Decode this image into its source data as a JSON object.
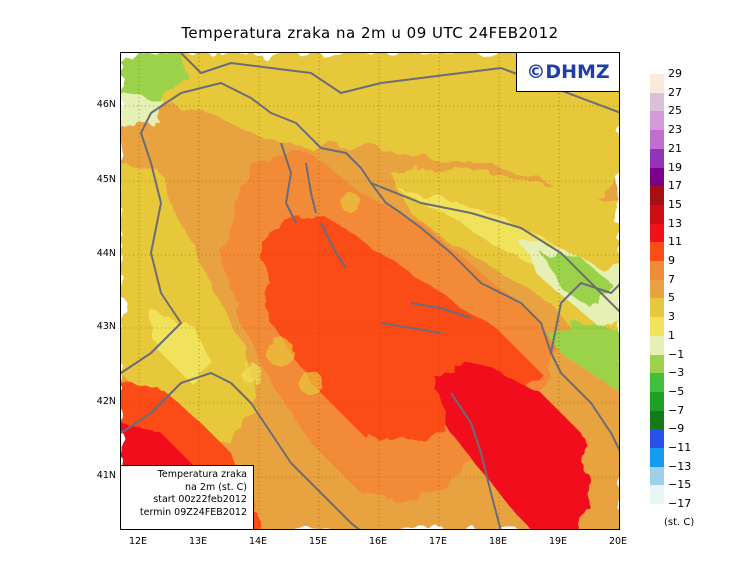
{
  "title": "Temperatura zraka na 2m u 09 UTC 24FEB2012",
  "brand": "©DHMZ",
  "info": {
    "line1": "Temperatura zraka",
    "line2": "na 2m (st. C)",
    "line3": "start 00z22feb2012",
    "line4": "termin 09Z24FEB2012"
  },
  "lat_labels": [
    "46N",
    "45N",
    "44N",
    "43N",
    "42N",
    "41N"
  ],
  "lon_labels": [
    "12E",
    "13E",
    "14E",
    "15E",
    "16E",
    "17E",
    "18E",
    "19E",
    "20E"
  ],
  "legend": {
    "unit": "(st. C)",
    "labels": [
      "29",
      "27",
      "25",
      "23",
      "21",
      "19",
      "17",
      "15",
      "13",
      "11",
      "9",
      "7",
      "5",
      "3",
      "1",
      "−1",
      "−3",
      "−5",
      "−7",
      "−9",
      "−11",
      "−13",
      "−15",
      "−17"
    ],
    "colors": [
      "#fbeadc",
      "#dcc0d8",
      "#d59ad8",
      "#c06fd0",
      "#9333b5",
      "#7a0088",
      "#a50f15",
      "#cf0d12",
      "#f2101a",
      "#fb4b18",
      "#f28a38",
      "#e9a23f",
      "#e8c83a",
      "#f0e25a",
      "#e6efb4",
      "#9bd24a",
      "#3fbf3a",
      "#1ea025",
      "#137a18",
      "#2a50ea",
      "#149cf0",
      "#9fd0ea",
      "#e9f6f7"
    ]
  }
}
